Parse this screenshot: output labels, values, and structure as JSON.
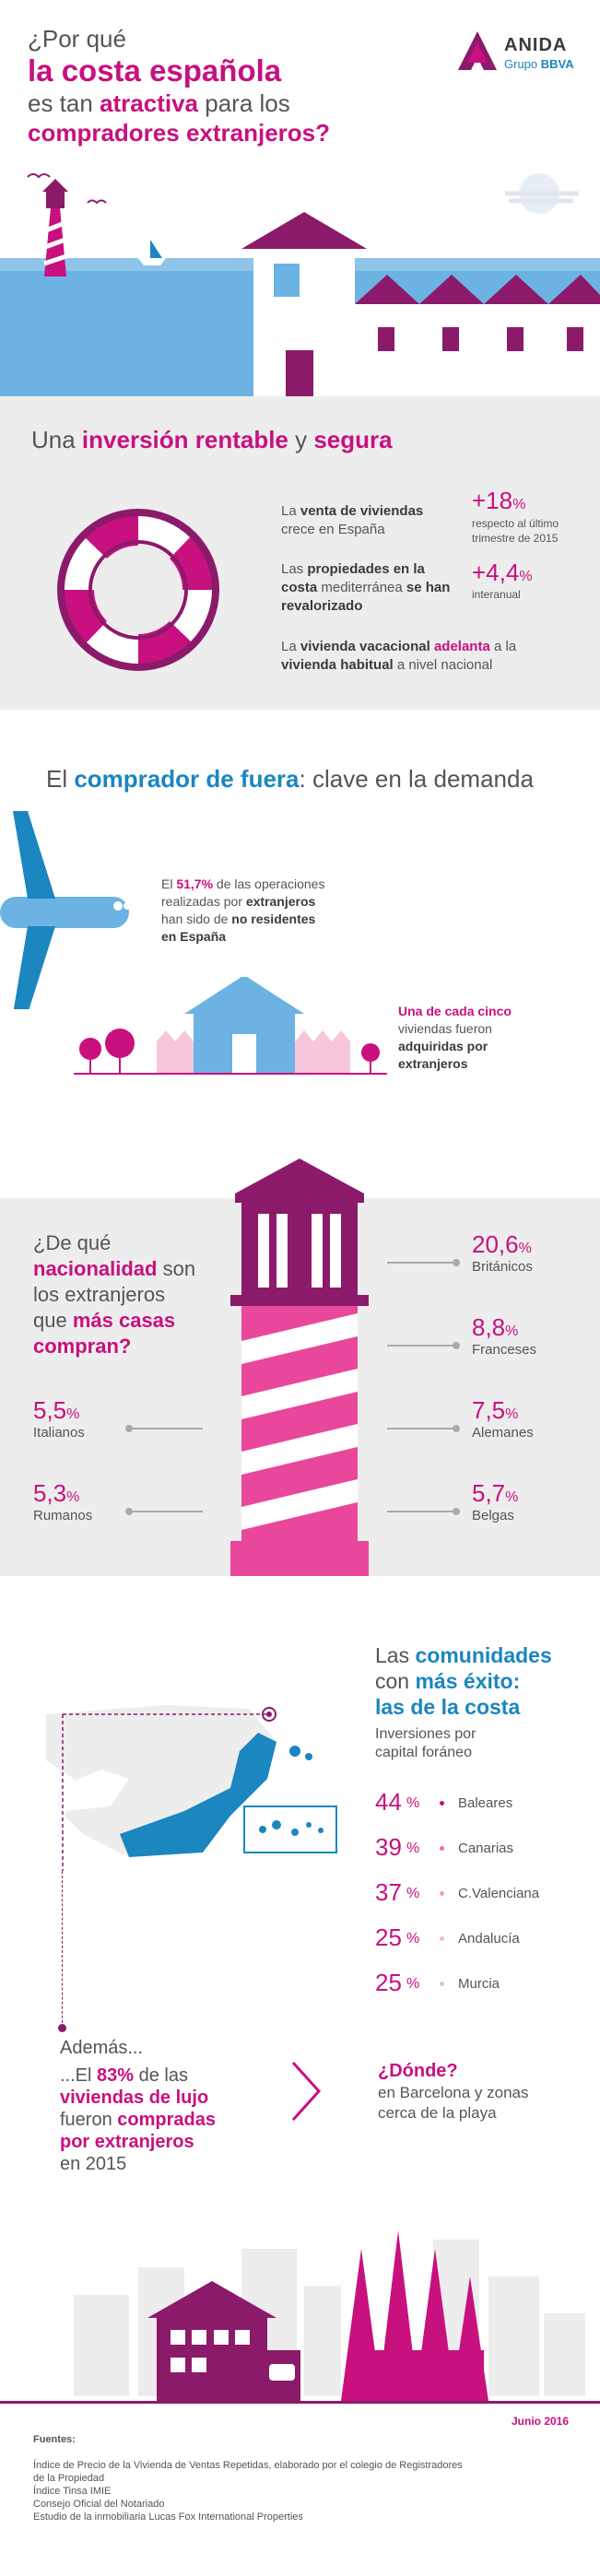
{
  "header": {
    "title_line1": "¿Por qué",
    "title_line2": "la costa española",
    "title_line3_pre": "es tan ",
    "title_line3_em": "atractiva",
    "title_line3_post": " para los",
    "title_line4": "compradores extranjeros?",
    "logo_name": "ANIDA",
    "logo_sub_pre": "Grupo ",
    "logo_sub_em": "BBVA"
  },
  "inversion": {
    "heading_pre": "Una ",
    "heading_em1": "inversión rentable",
    "heading_mid": " y ",
    "heading_em2": "segura",
    "stat1_text_a": "La ",
    "stat1_text_b": "venta de viviendas",
    "stat1_text_c": "crece en España",
    "stat1_value": "+18",
    "stat1_unit": "%",
    "stat1_note": "respecto al último trimestre de 2015",
    "stat2_text_a": "Las ",
    "stat2_text_b": "propiedades en la costa",
    "stat2_text_c": " mediterránea ",
    "stat2_text_d": "se han revalorizado",
    "stat2_value": "+4,4",
    "stat2_unit": "%",
    "stat2_note": "interanual",
    "stat3_a": "La ",
    "stat3_b": "vivienda vacacional ",
    "stat3_c": "adelanta",
    "stat3_d": " a la",
    "stat3_e": "vivienda habitual",
    "stat3_f": " a nivel nacional"
  },
  "comprador": {
    "heading_pre": "El ",
    "heading_em": "comprador de fuera",
    "heading_post": ": clave en la demanda",
    "plane_a": "El ",
    "plane_b": "51,7%",
    "plane_c": " de las operaciones",
    "plane_d": "realizadas por ",
    "plane_e": "extranjeros",
    "plane_f": "han sido de ",
    "plane_g": "no residentes",
    "plane_h": "en España",
    "house_a": "Una de cada cinco",
    "house_b": "viviendas fueron",
    "house_c": "adquiridas por",
    "house_d": "extranjeros"
  },
  "nacionalidad": {
    "q1": "¿De qué",
    "q2": "nacionalidad",
    "q2b": " son",
    "q3": "los extranjeros",
    "q4a": "que ",
    "q4b": "más casas",
    "q5": "compran?",
    "items": [
      {
        "value": "20,6",
        "unit": "%",
        "label": "Británicos"
      },
      {
        "value": "8,8",
        "unit": "%",
        "label": "Franceses"
      },
      {
        "value": "7,5",
        "unit": "%",
        "label": "Alemanes"
      },
      {
        "value": "5,7",
        "unit": "%",
        "label": "Belgas"
      },
      {
        "value": "5,5",
        "unit": "%",
        "label": "Italianos"
      },
      {
        "value": "5,3",
        "unit": "%",
        "label": "Rumanos"
      }
    ]
  },
  "comunidades": {
    "h1": "Las ",
    "h1b": "comunidades",
    "h2": "con ",
    "h2b": "más éxito:",
    "h3": "las de la costa",
    "sub1": "Inversiones por",
    "sub2": "capital foráneo",
    "items": [
      {
        "value": "44",
        "unit": "%",
        "label": "Baleares"
      },
      {
        "value": "39",
        "unit": "%",
        "label": "Canarias"
      },
      {
        "value": "37",
        "unit": "%",
        "label": "C.Valenciana"
      },
      {
        "value": "25",
        "unit": "%",
        "label": "Andalucía"
      },
      {
        "value": "25",
        "unit": "%",
        "label": "Murcia"
      }
    ]
  },
  "ademas": {
    "title": "Además...",
    "l1a": "...El ",
    "l1b": "83%",
    "l1c": " de las",
    "l2": "viviendas de lujo",
    "l3a": "fueron ",
    "l3b": "compradas",
    "l4": "por extranjeros",
    "l5": "en 2015",
    "donde_title": "¿Dónde?",
    "donde1": "en Barcelona y zonas",
    "donde2": "cerca de la playa"
  },
  "footer": {
    "date": "Junio 2016",
    "fuentes_title": "Fuentes:",
    "sources": [
      "Índice de Precio de la Vivienda de Ventas Repetidas, elaborado por el colegio de Registradores",
      "de la Propiedad",
      "Índice Tinsa IMIE",
      "Consejo Oficial del Notariado",
      "Estudio de la inmobiliaria Lucas Fox International Properties"
    ]
  },
  "colors": {
    "magenta": "#c8107f",
    "purple": "#8c1a6a",
    "blue": "#1b86bf",
    "sky": "#6cb3e3",
    "grey": "#ededed"
  }
}
